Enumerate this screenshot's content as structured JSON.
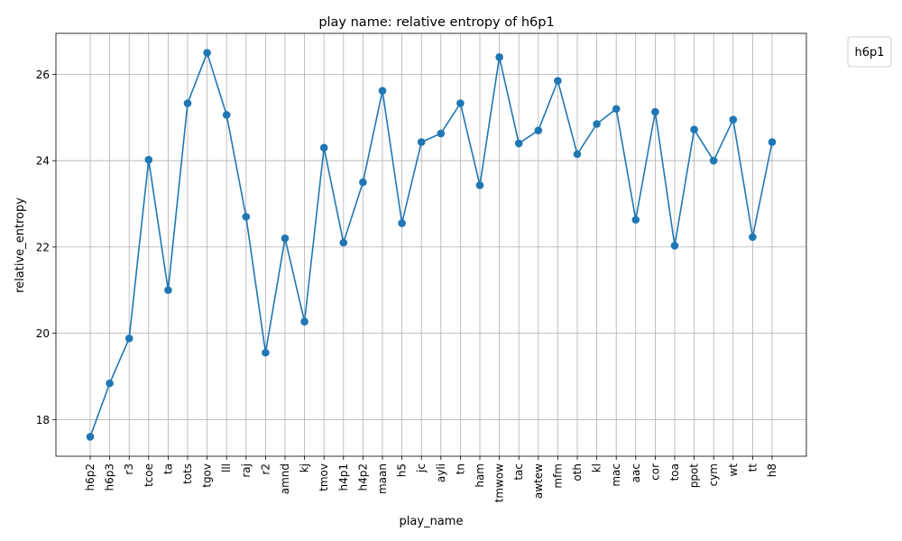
{
  "chart_data": {
    "type": "line",
    "title": "play name: relative entropy of h6p1",
    "xlabel": "play_name",
    "ylabel": "relative_entropy",
    "legend": {
      "title": "h6p1",
      "placement": "upper right, outside plot"
    },
    "categories": [
      "h6p2",
      "h6p3",
      "r3",
      "tcoe",
      "ta",
      "tots",
      "tgov",
      "lll",
      "raj",
      "r2",
      "amnd",
      "kj",
      "tmov",
      "h4p1",
      "h4p2",
      "maan",
      "h5",
      "jc",
      "ayli",
      "tn",
      "ham",
      "tmwow",
      "tac",
      "awtew",
      "mfm",
      "oth",
      "kl",
      "mac",
      "aac",
      "cor",
      "toa",
      "ppot",
      "cym",
      "wt",
      "tt",
      "h8"
    ],
    "values": [
      17.6,
      18.84,
      19.88,
      24.02,
      21.0,
      25.33,
      26.5,
      25.06,
      22.7,
      19.55,
      22.2,
      20.27,
      24.3,
      22.1,
      23.5,
      25.62,
      22.55,
      24.43,
      24.63,
      25.33,
      23.43,
      26.4,
      24.4,
      24.7,
      25.85,
      24.15,
      24.85,
      25.2,
      22.63,
      25.13,
      22.03,
      24.72,
      24.0,
      24.95,
      22.23,
      24.43
    ],
    "ylim": [
      17.15,
      26.95
    ],
    "yticks": [
      18,
      20,
      22,
      24,
      26
    ],
    "grid": true,
    "marker": "circle",
    "color": "#1f77b4"
  }
}
